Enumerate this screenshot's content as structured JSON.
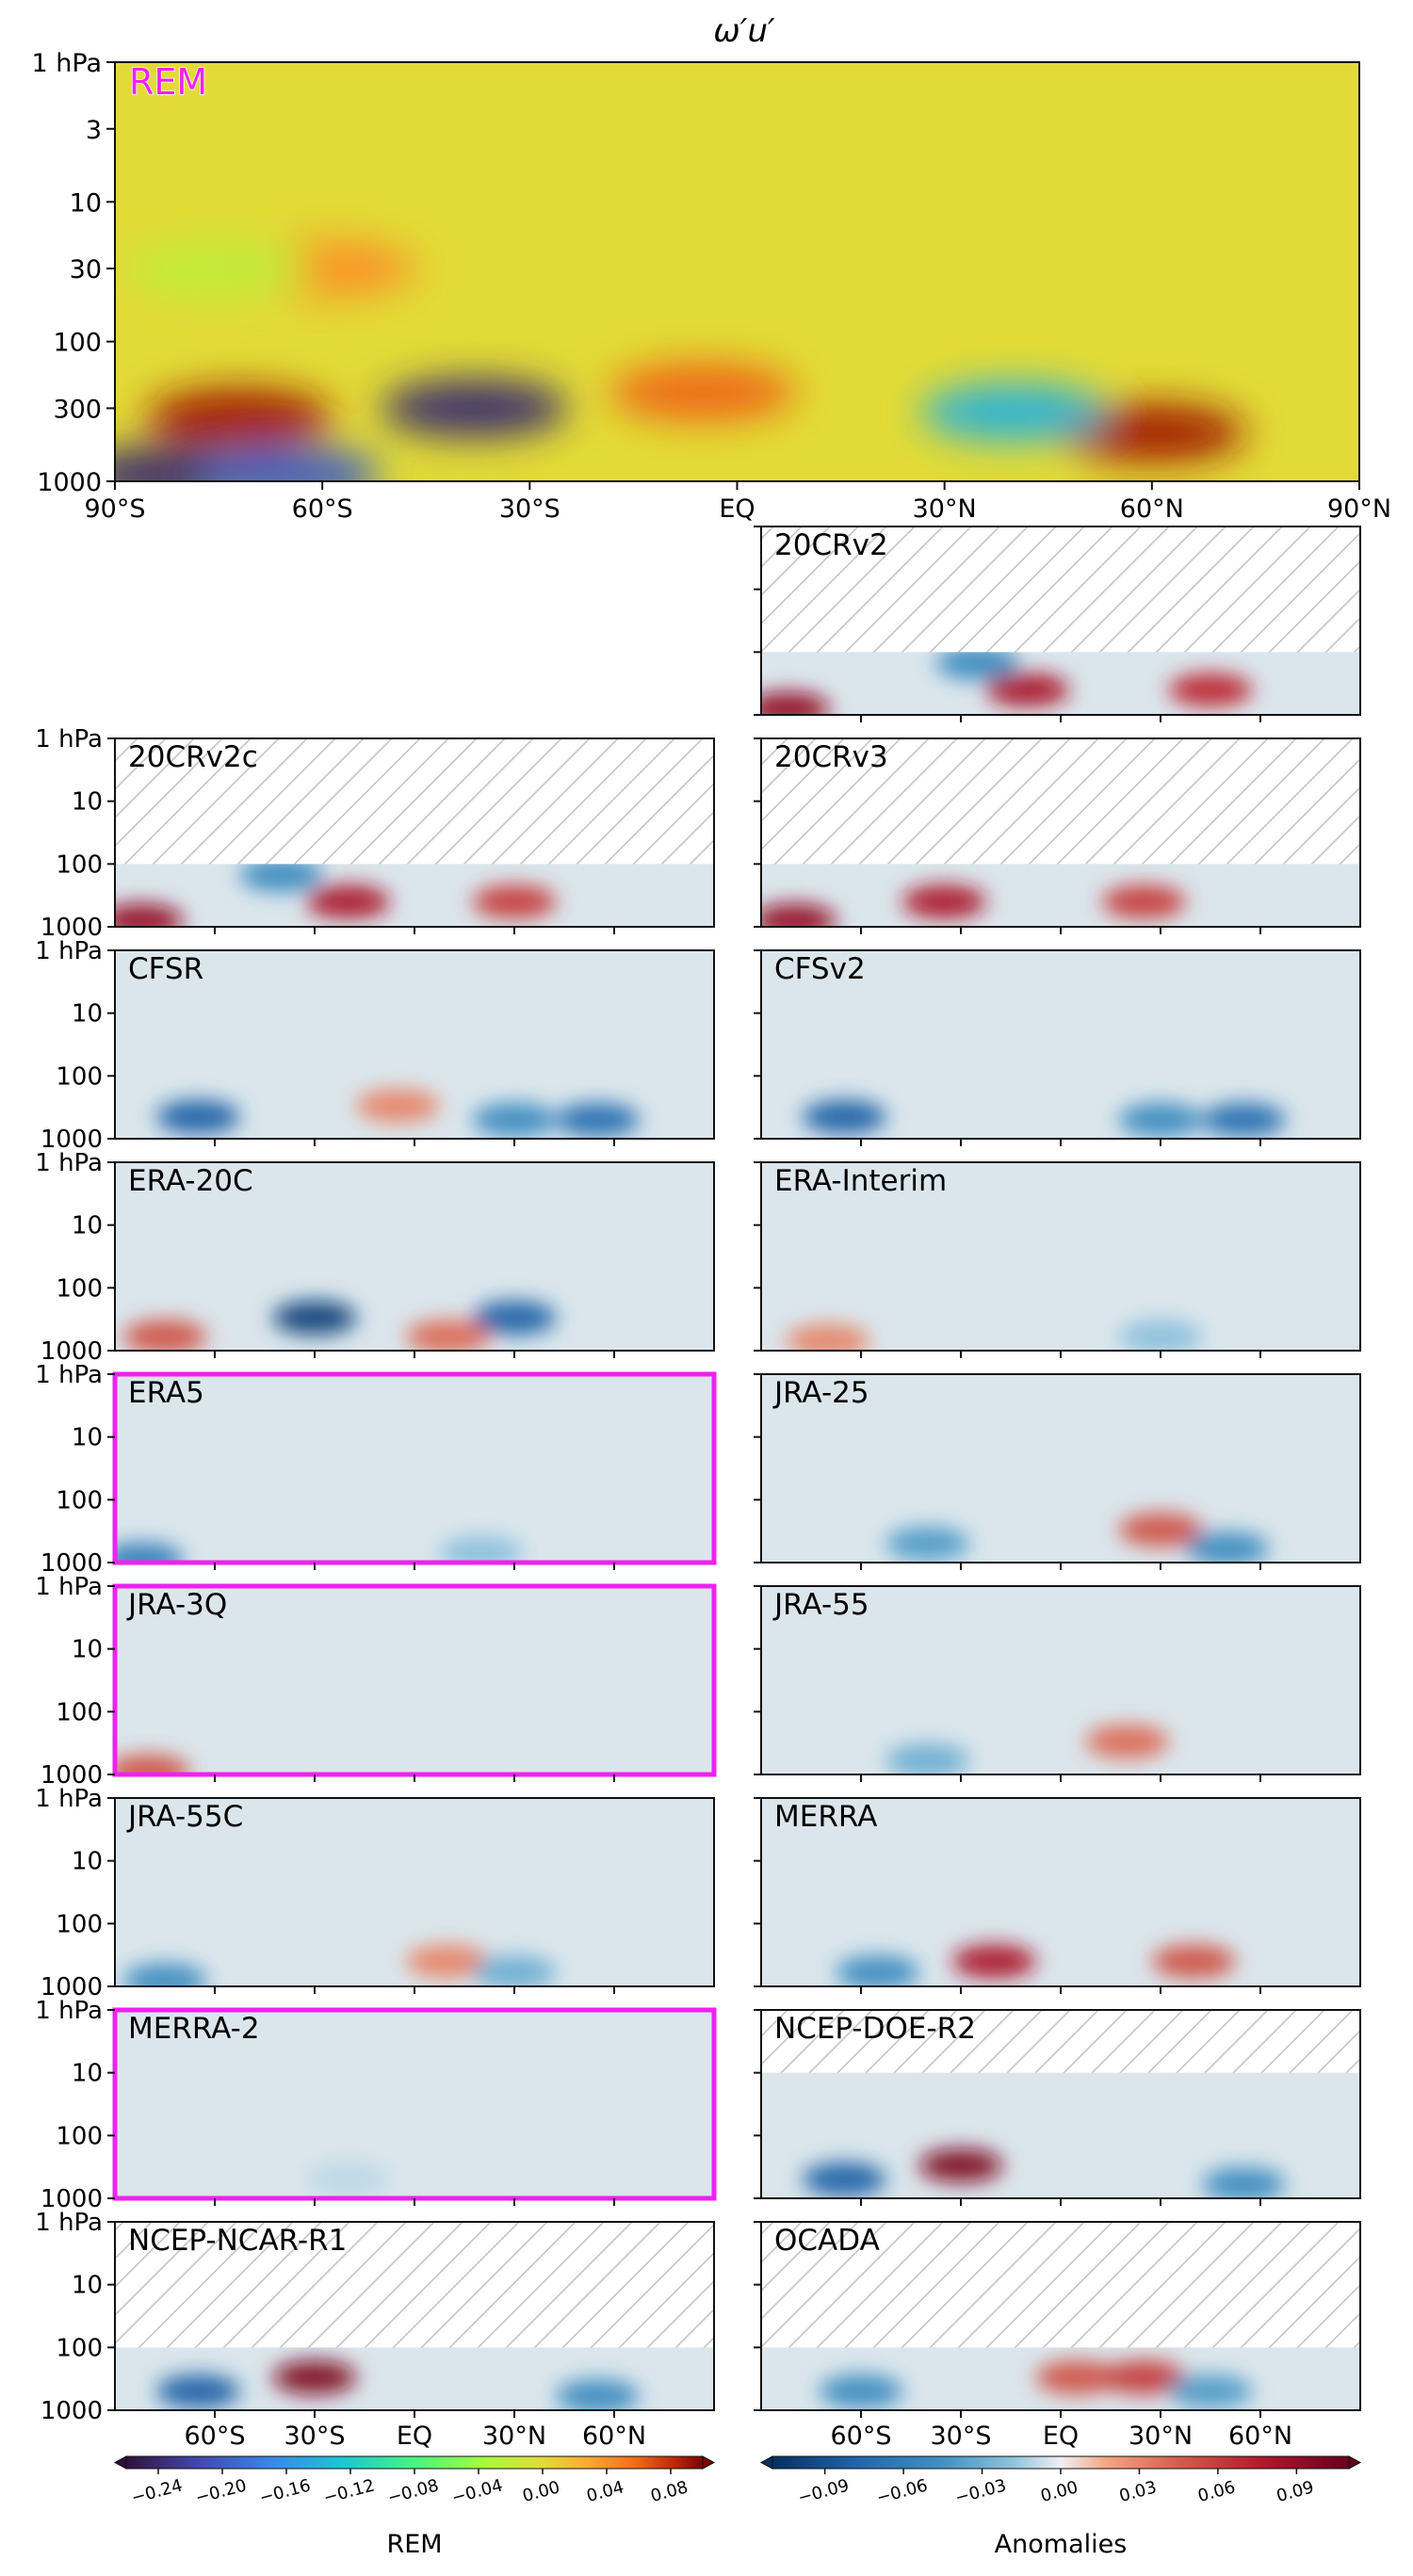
{
  "figure": {
    "title": "ω′u′",
    "highlight_color": "#ee22ee",
    "frame_color": "#111111"
  },
  "chart_data": {
    "type": "heatmap",
    "title": "ω′u′",
    "x_axis": {
      "ticks_main": [
        "90°S",
        "60°S",
        "30°S",
        "EQ",
        "30°N",
        "60°N",
        "90°N"
      ],
      "ticks_small": [
        "60°S",
        "30°S",
        "EQ",
        "30°N",
        "60°N"
      ],
      "range": [
        -90,
        90
      ]
    },
    "y_axis": {
      "log_scale": true,
      "inverted": true,
      "range": [
        1000,
        1
      ],
      "ticks_main": [
        "1 hPa",
        "3",
        "10",
        "30",
        "100",
        "300",
        "1000"
      ],
      "ticks_small": [
        "1 hPa",
        "10",
        "100",
        "1000"
      ]
    },
    "main_panel": {
      "label": "REM",
      "label_color": "#ee22ee",
      "background_level": 0.0,
      "features": [
        {
          "lat": -38,
          "p": 300,
          "value": -0.24
        },
        {
          "lat": -72,
          "p": 350,
          "value": 0.09
        },
        {
          "lat": 60,
          "p": 450,
          "value": 0.09
        },
        {
          "lat": 40,
          "p": 320,
          "value": -0.14
        },
        {
          "lat": -5,
          "p": 230,
          "value": 0.06
        },
        {
          "lat": -60,
          "p": 30,
          "value": 0.04
        },
        {
          "lat": -75,
          "p": 30,
          "value": -0.02
        },
        {
          "lat": -82,
          "p": 900,
          "value": -0.24
        },
        {
          "lat": -65,
          "p": 900,
          "value": -0.2
        }
      ]
    },
    "panels": [
      {
        "label": "20CRv2",
        "highlighted": false,
        "top_hPa": 100,
        "features": [
          {
            "lat": -10,
            "p": 400,
            "value": 0.08
          },
          {
            "lat": 45,
            "p": 400,
            "value": 0.07
          },
          {
            "lat": -25,
            "p": 150,
            "value": -0.05
          },
          {
            "lat": -82,
            "p": 800,
            "value": 0.09
          }
        ]
      },
      {
        "label": "20CRv2c",
        "highlighted": false,
        "top_hPa": 100,
        "features": [
          {
            "lat": -20,
            "p": 400,
            "value": 0.08
          },
          {
            "lat": 30,
            "p": 400,
            "value": 0.06
          },
          {
            "lat": -40,
            "p": 150,
            "value": -0.05
          },
          {
            "lat": -82,
            "p": 800,
            "value": 0.09
          }
        ]
      },
      {
        "label": "20CRv3",
        "highlighted": false,
        "top_hPa": 100,
        "features": [
          {
            "lat": -35,
            "p": 400,
            "value": 0.08
          },
          {
            "lat": 25,
            "p": 400,
            "value": 0.06
          },
          {
            "lat": -80,
            "p": 800,
            "value": 0.09
          }
        ]
      },
      {
        "label": "CFSR",
        "highlighted": false,
        "features": [
          {
            "lat": -65,
            "p": 450,
            "value": -0.08
          },
          {
            "lat": 30,
            "p": 500,
            "value": -0.05
          },
          {
            "lat": 55,
            "p": 500,
            "value": -0.07
          },
          {
            "lat": -5,
            "p": 300,
            "value": 0.03
          }
        ]
      },
      {
        "label": "CFSv2",
        "highlighted": false,
        "features": [
          {
            "lat": -65,
            "p": 450,
            "value": -0.08
          },
          {
            "lat": 30,
            "p": 500,
            "value": -0.05
          },
          {
            "lat": 55,
            "p": 500,
            "value": -0.07
          }
        ]
      },
      {
        "label": "ERA-20C",
        "highlighted": false,
        "features": [
          {
            "lat": -30,
            "p": 300,
            "value": -0.1
          },
          {
            "lat": 30,
            "p": 300,
            "value": -0.08
          },
          {
            "lat": -75,
            "p": 600,
            "value": 0.05
          },
          {
            "lat": 10,
            "p": 600,
            "value": 0.04
          }
        ]
      },
      {
        "label": "ERA-Interim",
        "highlighted": false,
        "features": [
          {
            "lat": -70,
            "p": 700,
            "value": 0.03
          },
          {
            "lat": 30,
            "p": 600,
            "value": -0.02
          }
        ]
      },
      {
        "label": "ERA5",
        "highlighted": true,
        "features": [
          {
            "lat": -82,
            "p": 900,
            "value": -0.06
          },
          {
            "lat": 20,
            "p": 700,
            "value": -0.02
          }
        ]
      },
      {
        "label": "JRA-25",
        "highlighted": false,
        "features": [
          {
            "lat": 30,
            "p": 300,
            "value": 0.05
          },
          {
            "lat": -40,
            "p": 500,
            "value": -0.04
          },
          {
            "lat": 50,
            "p": 600,
            "value": -0.05
          }
        ]
      },
      {
        "label": "JRA-3Q",
        "highlighted": true,
        "features": [
          {
            "lat": -80,
            "p": 900,
            "value": 0.05
          }
        ]
      },
      {
        "label": "JRA-55",
        "highlighted": false,
        "features": [
          {
            "lat": 20,
            "p": 300,
            "value": 0.04
          },
          {
            "lat": -40,
            "p": 600,
            "value": -0.03
          }
        ]
      },
      {
        "label": "JRA-55C",
        "highlighted": false,
        "features": [
          {
            "lat": -75,
            "p": 800,
            "value": -0.05
          },
          {
            "lat": 10,
            "p": 400,
            "value": 0.03
          },
          {
            "lat": 30,
            "p": 600,
            "value": -0.03
          }
        ]
      },
      {
        "label": "MERRA",
        "highlighted": false,
        "features": [
          {
            "lat": -20,
            "p": 400,
            "value": 0.08
          },
          {
            "lat": 40,
            "p": 400,
            "value": 0.05
          },
          {
            "lat": -55,
            "p": 600,
            "value": -0.05
          }
        ]
      },
      {
        "label": "MERRA-2",
        "highlighted": true,
        "features": [
          {
            "lat": -20,
            "p": 500,
            "value": -0.01
          }
        ]
      },
      {
        "label": "NCEP-DOE-R2",
        "highlighted": false,
        "top_hPa": 10,
        "features": [
          {
            "lat": -30,
            "p": 300,
            "value": 0.1
          },
          {
            "lat": -65,
            "p": 500,
            "value": -0.08
          },
          {
            "lat": 55,
            "p": 600,
            "value": -0.05
          }
        ]
      },
      {
        "label": "NCEP-NCAR-R1",
        "highlighted": false,
        "top_hPa": 100,
        "features": [
          {
            "lat": -30,
            "p": 300,
            "value": 0.1
          },
          {
            "lat": -65,
            "p": 500,
            "value": -0.08
          },
          {
            "lat": 55,
            "p": 600,
            "value": -0.05
          }
        ]
      },
      {
        "label": "OCADA",
        "highlighted": false,
        "top_hPa": 100,
        "features": [
          {
            "lat": 5,
            "p": 300,
            "value": 0.05
          },
          {
            "lat": 25,
            "p": 300,
            "value": 0.06
          },
          {
            "lat": -60,
            "p": 500,
            "value": -0.05
          },
          {
            "lat": 45,
            "p": 500,
            "value": -0.04
          }
        ]
      }
    ],
    "colorbars": [
      {
        "label": "REM",
        "colormap": "turbo-like",
        "ticks": [
          "−0.24",
          "−0.20",
          "−0.16",
          "−0.12",
          "−0.08",
          "−0.04",
          "0.00",
          "0.04",
          "0.08"
        ],
        "range": [
          -0.26,
          0.1
        ]
      },
      {
        "label": "Anomalies",
        "colormap": "RdBu_r",
        "ticks": [
          "−0.09",
          "−0.06",
          "−0.03",
          "0.00",
          "0.03",
          "0.06",
          "0.09"
        ],
        "range": [
          -0.11,
          0.11
        ]
      }
    ]
  }
}
